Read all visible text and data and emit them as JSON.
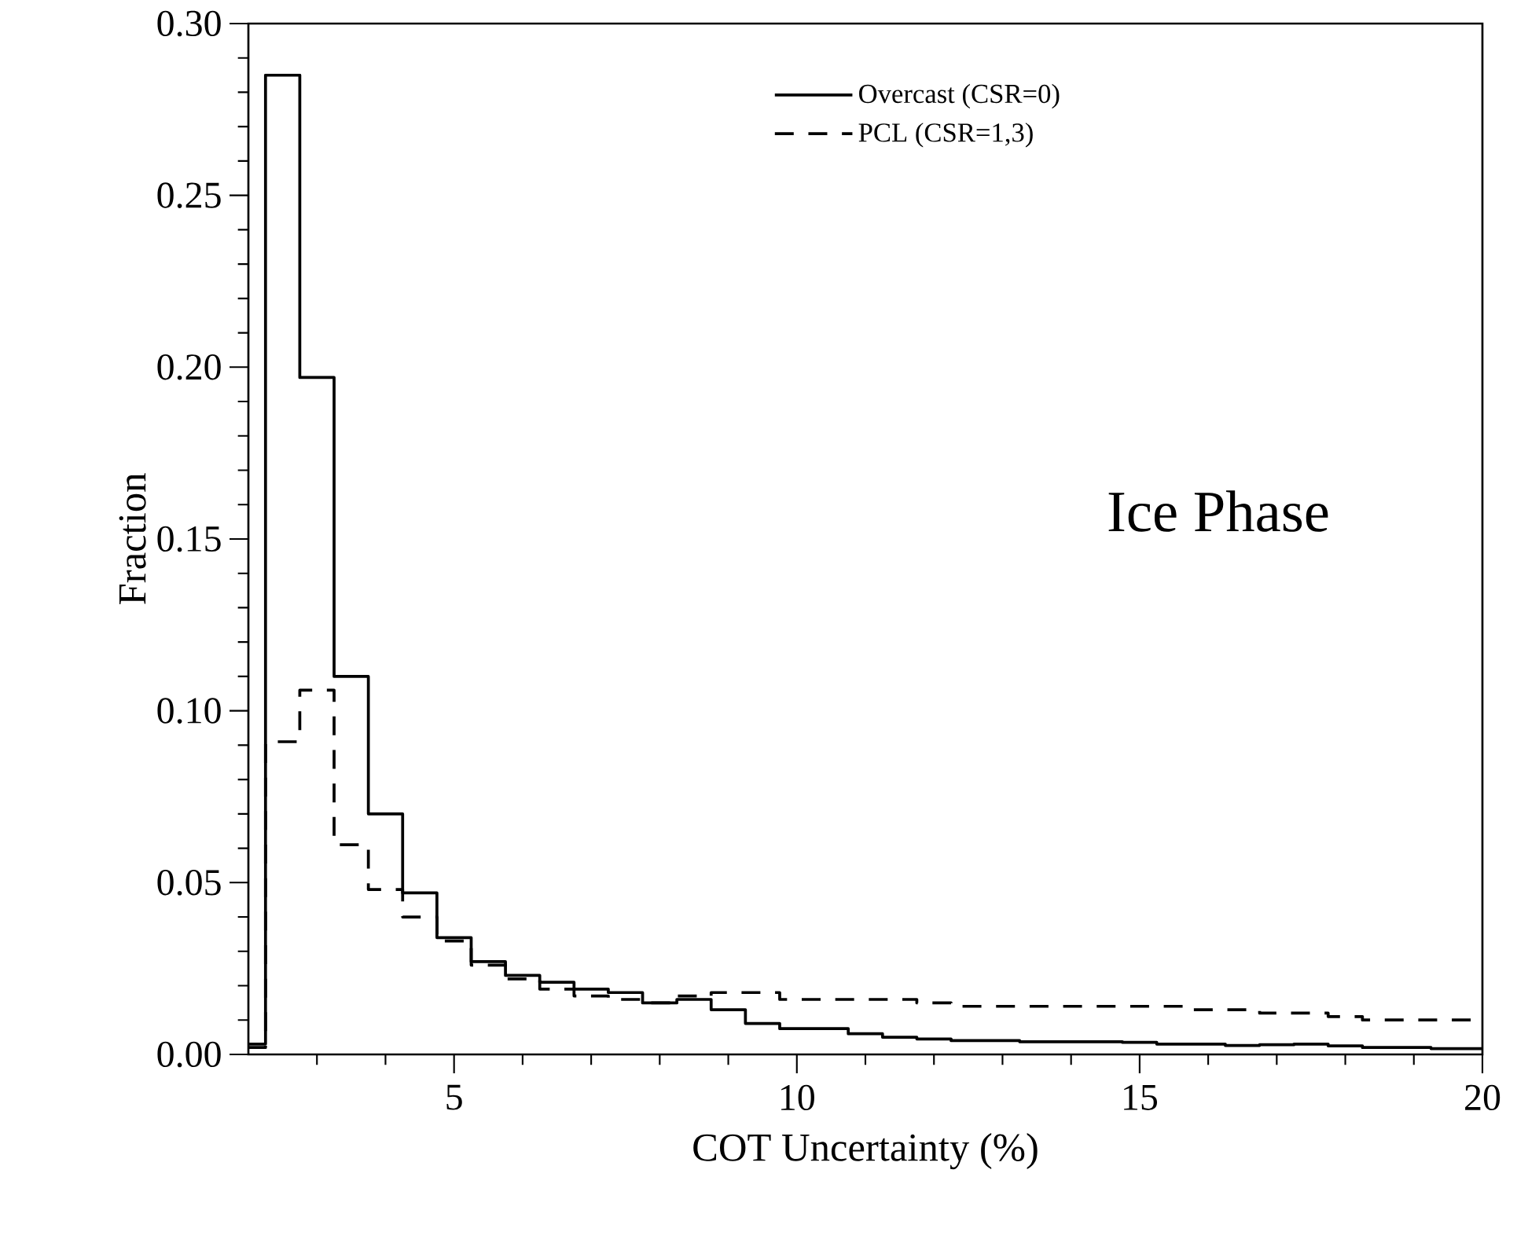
{
  "chart_data": {
    "type": "step",
    "xlabel": "COT Uncertainty (%)",
    "ylabel": "Fraction",
    "annotations": [
      "Ice Phase"
    ],
    "x": [
      2,
      2.25,
      2.75,
      3.25,
      3.75,
      4.25,
      4.75,
      5.25,
      5.75,
      6.25,
      6.75,
      7.25,
      7.75,
      8.25,
      8.75,
      9.25,
      9.75,
      10.25,
      10.75,
      11.25,
      11.75,
      12.25,
      12.75,
      13.25,
      13.75,
      14.25,
      14.75,
      15.25,
      15.75,
      16.25,
      16.75,
      17.25,
      17.75,
      18.25,
      18.75,
      19.25,
      19.75,
      20
    ],
    "series": [
      {
        "name": "Overcast (CSR=0)",
        "color": "#000000",
        "line_style": "solid",
        "values": [
          0.003,
          0.285,
          0.197,
          0.11,
          0.07,
          0.047,
          0.034,
          0.027,
          0.023,
          0.021,
          0.019,
          0.018,
          0.015,
          0.016,
          0.013,
          0.009,
          0.0075,
          0.0075,
          0.006,
          0.005,
          0.0045,
          0.004,
          0.004,
          0.0037,
          0.0037,
          0.0037,
          0.0035,
          0.003,
          0.003,
          0.0026,
          0.0028,
          0.003,
          0.0025,
          0.002,
          0.002,
          0.0017,
          0.0017,
          0.0017
        ]
      },
      {
        "name": "PCL (CSR=1,3)",
        "color": "#000000",
        "line_style": "dashed",
        "values": [
          0.002,
          0.091,
          0.106,
          0.061,
          0.048,
          0.04,
          0.033,
          0.026,
          0.022,
          0.019,
          0.017,
          0.016,
          0.015,
          0.017,
          0.018,
          0.018,
          0.016,
          0.016,
          0.016,
          0.016,
          0.015,
          0.014,
          0.014,
          0.014,
          0.014,
          0.014,
          0.014,
          0.014,
          0.013,
          0.013,
          0.012,
          0.012,
          0.011,
          0.01,
          0.01,
          0.01,
          0.01,
          0.01
        ]
      }
    ],
    "xlim": [
      2,
      20
    ],
    "ylim": [
      0,
      0.3
    ],
    "xticks": [
      {
        "value": 3,
        "label": null
      },
      {
        "value": 4,
        "label": null
      },
      5,
      {
        "value": 6,
        "label": null
      },
      {
        "value": 7,
        "label": null
      },
      {
        "value": 8,
        "label": null
      },
      {
        "value": 9,
        "label": null
      },
      10,
      {
        "value": 11,
        "label": null
      },
      {
        "value": 12,
        "label": null
      },
      {
        "value": 13,
        "label": null
      },
      {
        "value": 14,
        "label": null
      },
      15,
      {
        "value": 16,
        "label": null
      },
      {
        "value": 17,
        "label": null
      },
      {
        "value": 18,
        "label": null
      },
      {
        "value": 19,
        "label": null
      },
      20
    ],
    "yticks": [
      {
        "value": 0,
        "label": "0.00"
      },
      {
        "value": 0.01,
        "label": null
      },
      {
        "value": 0.02,
        "label": null
      },
      {
        "value": 0.03,
        "label": null
      },
      {
        "value": 0.04,
        "label": null
      },
      {
        "value": 0.05,
        "label": "0.05"
      },
      {
        "value": 0.06,
        "label": null
      },
      {
        "value": 0.07,
        "label": null
      },
      {
        "value": 0.08,
        "label": null
      },
      {
        "value": 0.09,
        "label": null
      },
      {
        "value": 0.1,
        "label": "0.10"
      },
      {
        "value": 0.11,
        "label": null
      },
      {
        "value": 0.12,
        "label": null
      },
      {
        "value": 0.13,
        "label": null
      },
      {
        "value": 0.14,
        "label": null
      },
      {
        "value": 0.15,
        "label": "0.15"
      },
      {
        "value": 0.16,
        "label": null
      },
      {
        "value": 0.17,
        "label": null
      },
      {
        "value": 0.18,
        "label": null
      },
      {
        "value": 0.19,
        "label": null
      },
      {
        "value": 0.2,
        "label": "0.20"
      },
      {
        "value": 0.21,
        "label": null
      },
      {
        "value": 0.22,
        "label": null
      },
      {
        "value": 0.23,
        "label": null
      },
      {
        "value": 0.24,
        "label": null
      },
      {
        "value": 0.25,
        "label": "0.25"
      },
      {
        "value": 0.26,
        "label": null
      },
      {
        "value": 0.27,
        "label": null
      },
      {
        "value": 0.28,
        "label": null
      },
      {
        "value": 0.29,
        "label": null
      },
      {
        "value": 0.3,
        "label": "0.30"
      }
    ],
    "grid": false,
    "legend": "top right"
  }
}
